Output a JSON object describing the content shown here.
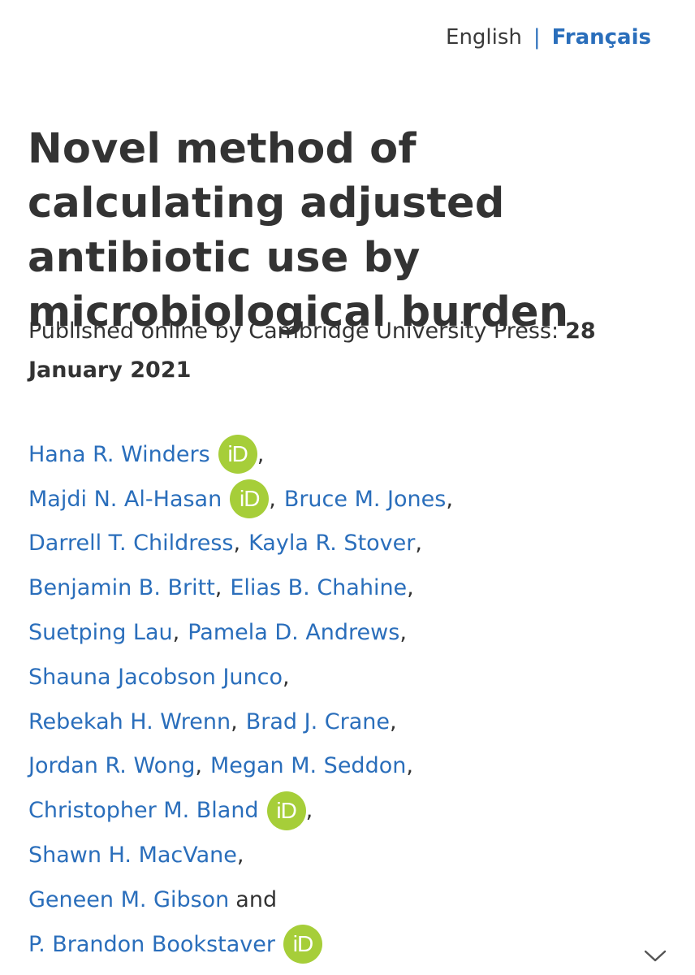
{
  "language_switch": {
    "english": "English",
    "separator": "|",
    "french": "Français"
  },
  "article": {
    "title": "Novel method of calculating adjusted antibiotic use by microbiological burden",
    "published_prefix": "Published online by Cambridge University Press:",
    "published_date": "28 January 2021"
  },
  "orcid_icon_text": "iD",
  "and_word": "and",
  "comma": ",",
  "colors": {
    "link": "#2a6ebb",
    "orcid": "#a6ce39",
    "text": "#333333"
  },
  "author_lines": [
    [
      {
        "name": "Hana R. Winders",
        "orcid": true,
        "sep": ","
      }
    ],
    [
      {
        "name": "Majdi N. Al-Hasan",
        "orcid": true,
        "sep": ","
      },
      {
        "name": "Bruce M. Jones",
        "orcid": false,
        "sep": ","
      }
    ],
    [
      {
        "name": "Darrell T. Childress",
        "orcid": false,
        "sep": ","
      },
      {
        "name": "Kayla R. Stover",
        "orcid": false,
        "sep": ","
      }
    ],
    [
      {
        "name": "Benjamin B. Britt",
        "orcid": false,
        "sep": ","
      },
      {
        "name": "Elias B. Chahine",
        "orcid": false,
        "sep": ","
      }
    ],
    [
      {
        "name": "Suetping Lau",
        "orcid": false,
        "sep": ","
      },
      {
        "name": "Pamela D. Andrews",
        "orcid": false,
        "sep": ","
      }
    ],
    [
      {
        "name": "Shauna Jacobson Junco",
        "orcid": false,
        "sep": ","
      }
    ],
    [
      {
        "name": "Rebekah H. Wrenn",
        "orcid": false,
        "sep": ","
      },
      {
        "name": "Brad J. Crane",
        "orcid": false,
        "sep": ","
      }
    ],
    [
      {
        "name": "Jordan R. Wong",
        "orcid": false,
        "sep": ","
      },
      {
        "name": "Megan M. Seddon",
        "orcid": false,
        "sep": ","
      }
    ],
    [
      {
        "name": "Christopher M. Bland",
        "orcid": true,
        "sep": ","
      }
    ],
    [
      {
        "name": "Shawn H. MacVane",
        "orcid": false,
        "sep": ","
      }
    ],
    [
      {
        "name": "Geneen M. Gibson",
        "orcid": false,
        "sep": "and"
      }
    ],
    [
      {
        "name": "P. Brandon Bookstaver",
        "orcid": true,
        "sep": ""
      }
    ]
  ]
}
